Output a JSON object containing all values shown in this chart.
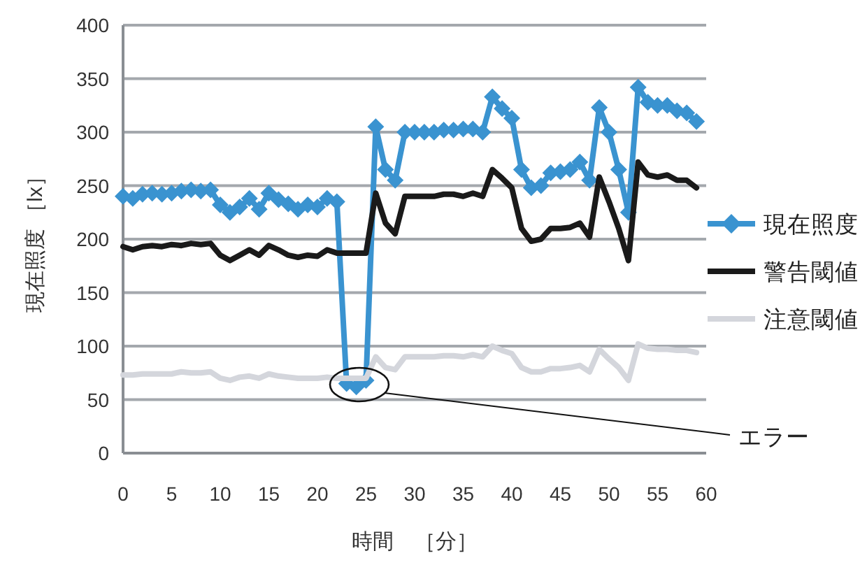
{
  "chart_data": {
    "type": "line",
    "xlabel": "時間　［分］",
    "ylabel": "現在照度 ［lx］",
    "x": [
      0,
      1,
      2,
      3,
      4,
      5,
      6,
      7,
      8,
      9,
      10,
      11,
      12,
      13,
      14,
      15,
      16,
      17,
      18,
      19,
      20,
      21,
      22,
      23,
      24,
      25,
      26,
      27,
      28,
      29,
      30,
      31,
      32,
      33,
      34,
      35,
      36,
      37,
      38,
      39,
      40,
      41,
      42,
      43,
      44,
      45,
      46,
      47,
      48,
      49,
      50,
      51,
      52,
      53,
      54,
      55,
      56,
      57,
      58,
      59
    ],
    "series": [
      {
        "name": "現在照度",
        "color": "#3a93d0",
        "marker": "diamond",
        "values": [
          240,
          238,
          242,
          243,
          242,
          243,
          245,
          246,
          245,
          246,
          232,
          225,
          230,
          238,
          228,
          243,
          237,
          233,
          228,
          232,
          230,
          238,
          235,
          65,
          62,
          68,
          305,
          265,
          255,
          300,
          300,
          300,
          300,
          302,
          302,
          303,
          303,
          300,
          333,
          322,
          313,
          265,
          248,
          250,
          262,
          263,
          265,
          272,
          255,
          323,
          300,
          265,
          225,
          342,
          328,
          325,
          325,
          320,
          318,
          310
        ]
      },
      {
        "name": "警告閾値",
        "color": "#1a1a1a",
        "marker": "none",
        "values": [
          193,
          190,
          193,
          194,
          193,
          195,
          194,
          196,
          195,
          196,
          185,
          180,
          185,
          190,
          185,
          194,
          190,
          185,
          183,
          185,
          184,
          190,
          187,
          187,
          187,
          187,
          243,
          215,
          205,
          240,
          240,
          240,
          240,
          242,
          242,
          240,
          243,
          240,
          265,
          257,
          248,
          210,
          198,
          200,
          210,
          210,
          211,
          215,
          202,
          258,
          235,
          210,
          180,
          272,
          260,
          258,
          260,
          255,
          255,
          248
        ]
      },
      {
        "name": "注意閾値",
        "color": "#d4d6dc",
        "marker": "none",
        "values": [
          73,
          73,
          74,
          74,
          74,
          74,
          76,
          75,
          75,
          76,
          70,
          68,
          71,
          72,
          70,
          74,
          72,
          71,
          70,
          70,
          70,
          71,
          70,
          70,
          70,
          70,
          90,
          80,
          78,
          90,
          90,
          90,
          90,
          91,
          91,
          90,
          92,
          90,
          100,
          96,
          93,
          80,
          76,
          76,
          79,
          79,
          80,
          82,
          76,
          97,
          88,
          80,
          68,
          102,
          98,
          97,
          97,
          96,
          96,
          94
        ]
      }
    ],
    "xlim": [
      0,
      60
    ],
    "xticks": [
      0,
      5,
      10,
      15,
      20,
      25,
      30,
      35,
      40,
      45,
      50,
      55,
      60
    ],
    "ylim": [
      0,
      400
    ],
    "yticks": [
      0,
      50,
      100,
      150,
      200,
      250,
      300,
      350,
      400
    ],
    "grid": "y",
    "legend": "right",
    "line_style": "solid",
    "annotations": [
      "エラー"
    ]
  }
}
